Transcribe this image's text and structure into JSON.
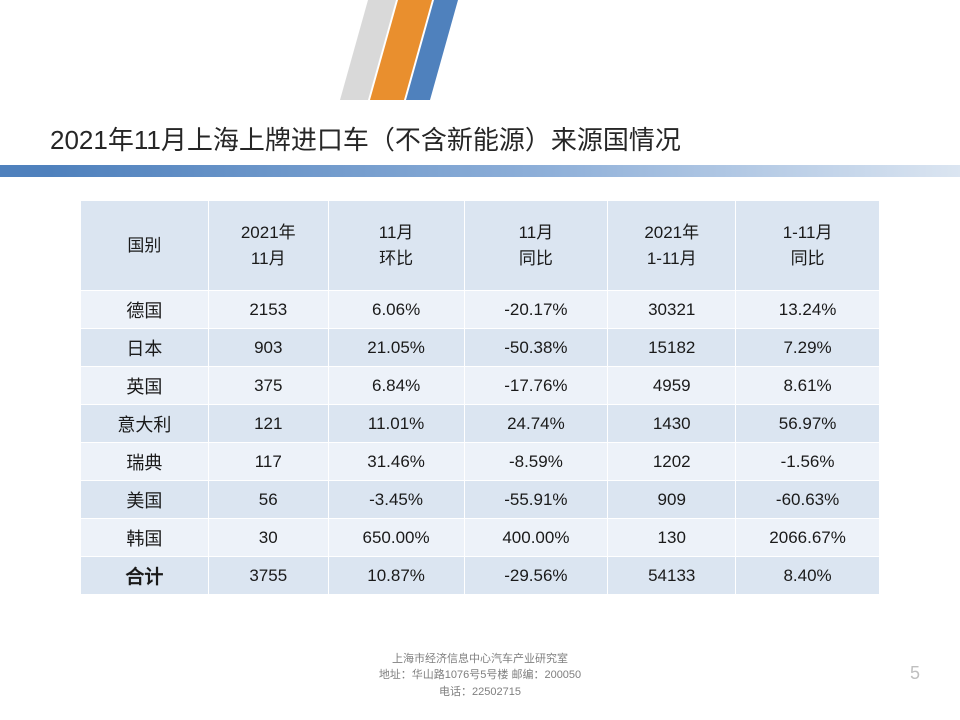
{
  "title": "2021年11月上海上牌进口车（不含新能源）来源国情况",
  "decor": {
    "color_orange": "#e98f2e",
    "color_blue": "#4f81bd",
    "color_gray": "#d9d9d9"
  },
  "table": {
    "header_bg": "#dbe5f1",
    "row_even_bg": "#dbe5f1",
    "row_odd_bg": "#edf2f9",
    "border_color": "#ffffff",
    "columns": [
      {
        "label": "国别",
        "width": "16%"
      },
      {
        "label": "2021年\n11月",
        "width": "15%"
      },
      {
        "label": "11月\n环比",
        "width": "17%"
      },
      {
        "label": "11月\n同比",
        "width": "18%"
      },
      {
        "label": "2021年\n1-11月",
        "width": "16%"
      },
      {
        "label": "1-11月\n同比",
        "width": "18%"
      }
    ],
    "rows": [
      {
        "country": "德国",
        "c1": "2153",
        "c2": "6.06%",
        "c3": "-20.17%",
        "c4": "30321",
        "c5": "13.24%"
      },
      {
        "country": "日本",
        "c1": "903",
        "c2": "21.05%",
        "c3": "-50.38%",
        "c4": "15182",
        "c5": "7.29%"
      },
      {
        "country": "英国",
        "c1": "375",
        "c2": "6.84%",
        "c3": "-17.76%",
        "c4": "4959",
        "c5": "8.61%"
      },
      {
        "country": "意大利",
        "c1": "121",
        "c2": "11.01%",
        "c3": "24.74%",
        "c4": "1430",
        "c5": "56.97%"
      },
      {
        "country": "瑞典",
        "c1": "117",
        "c2": "31.46%",
        "c3": "-8.59%",
        "c4": "1202",
        "c5": "-1.56%"
      },
      {
        "country": "美国",
        "c1": "56",
        "c2": "-3.45%",
        "c3": "-55.91%",
        "c4": "909",
        "c5": "-60.63%"
      },
      {
        "country": "韩国",
        "c1": "30",
        "c2": "650.00%",
        "c3": "400.00%",
        "c4": "130",
        "c5": "2066.67%"
      },
      {
        "country": "合计",
        "c1": "3755",
        "c2": "10.87%",
        "c3": "-29.56%",
        "c4": "54133",
        "c5": "8.40%",
        "total": true
      }
    ]
  },
  "footer": {
    "line1": "上海市经济信息中心汽车产业研究室",
    "line2": "地址：华山路1076号5号楼  邮编：200050",
    "line3": "电话：22502715"
  },
  "page_number": "5"
}
